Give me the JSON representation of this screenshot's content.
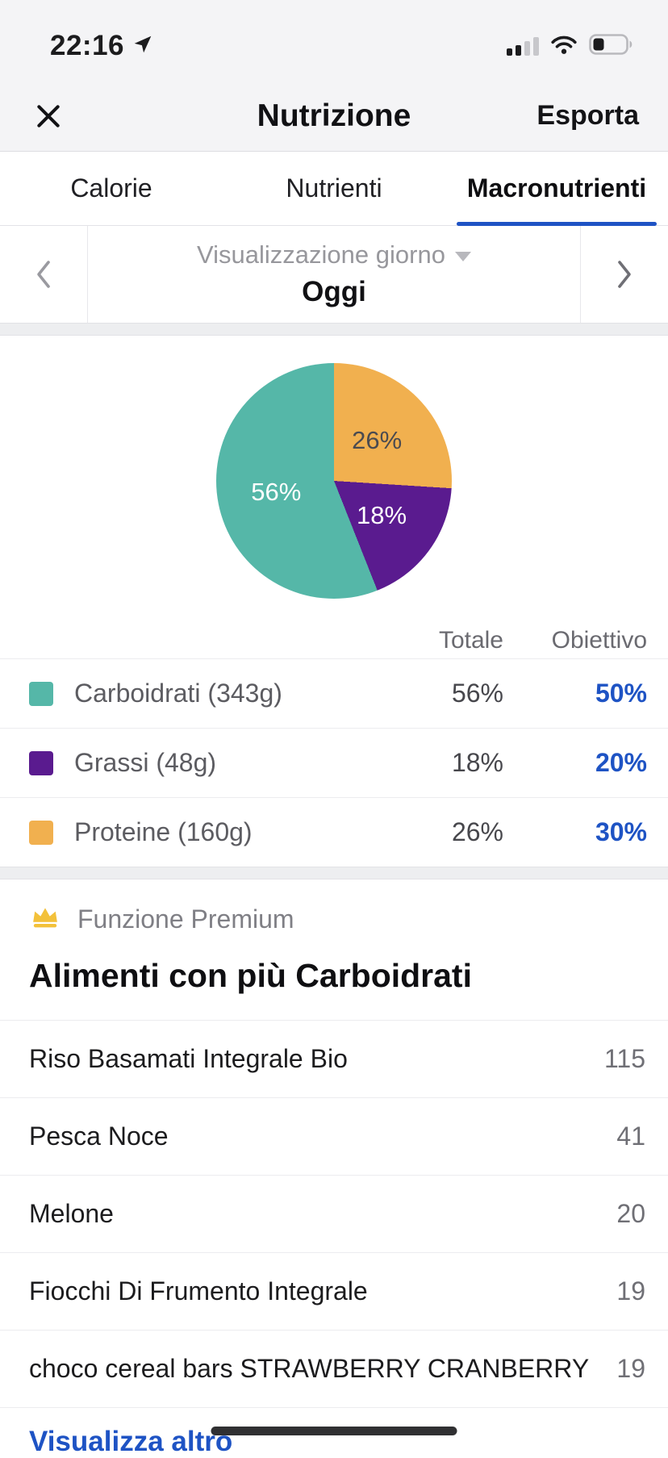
{
  "status_bar": {
    "time": "22:16"
  },
  "header": {
    "title": "Nutrizione",
    "export_label": "Esporta"
  },
  "tabs": [
    {
      "label": "Calorie",
      "active": false
    },
    {
      "label": "Nutrienti",
      "active": false
    },
    {
      "label": "Macronutrienti",
      "active": true
    }
  ],
  "date_nav": {
    "mode_label": "Visualizzazione giorno",
    "current_label": "Oggi"
  },
  "chart_data": {
    "type": "pie",
    "segments_clockwise_from_top": [
      {
        "name": "Proteine",
        "value": 26,
        "color": "#f1b04f",
        "text_color": "#4b4b50"
      },
      {
        "name": "Grassi",
        "value": 18,
        "color": "#5a1b8f",
        "text_color": "#ffffff"
      },
      {
        "name": "Carboidrati",
        "value": 56,
        "color": "#55b7a8",
        "text_color": "#ffffff"
      }
    ],
    "legend": {
      "columns": [
        "Totale",
        "Obiettivo"
      ],
      "rows": [
        {
          "label": "Carboidrati (343g)",
          "color": "#55b7a8",
          "total": "56%",
          "goal": "50%"
        },
        {
          "label": "Grassi (48g)",
          "color": "#5a1b8f",
          "total": "18%",
          "goal": "20%"
        },
        {
          "label": "Proteine (160g)",
          "color": "#f1b04f",
          "total": "26%",
          "goal": "30%"
        }
      ]
    }
  },
  "premium": {
    "label": "Funzione Premium"
  },
  "foods": {
    "title": "Alimenti con più Carboidrati",
    "items": [
      {
        "name": "Riso Basamati Integrale Bio",
        "value": "115"
      },
      {
        "name": "Pesca Noce",
        "value": "41"
      },
      {
        "name": "Melone",
        "value": "20"
      },
      {
        "name": "Fiocchi Di Frumento Integrale",
        "value": "19"
      },
      {
        "name": "choco cereal bars STRAWBERRY CRANBERRY",
        "value": "19"
      }
    ],
    "more_label": "Visualizza altro"
  },
  "colors": {
    "accent_blue": "#1e53c4",
    "teal": "#55b7a8",
    "purple": "#5a1b8f",
    "orange": "#f1b04f"
  }
}
